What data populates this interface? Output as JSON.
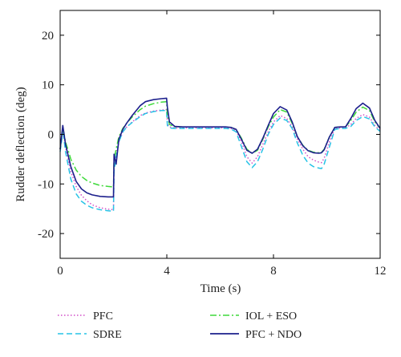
{
  "chart_data": {
    "type": "line",
    "xlabel": "Time (s)",
    "ylabel": "Rudder deflection (deg)",
    "xlim": [
      0,
      12
    ],
    "ylim": [
      -25,
      25
    ],
    "xticks": [
      0,
      4,
      8,
      12
    ],
    "yticks": [
      -20,
      -10,
      0,
      10,
      20
    ],
    "grid": false,
    "legend_position": "bottom",
    "series": [
      {
        "name": "PFC",
        "color": "#d24fc8",
        "style": "dotted",
        "x": [
          0,
          0.05,
          0.1,
          0.2,
          0.4,
          0.6,
          0.8,
          1.0,
          1.2,
          1.5,
          1.8,
          2.0,
          2.02,
          2.1,
          2.2,
          2.35,
          2.5,
          2.7,
          3.0,
          3.2,
          3.5,
          3.8,
          3.99,
          4.02,
          4.1,
          4.3,
          4.6,
          5.0,
          5.4,
          5.8,
          6.2,
          6.4,
          6.6,
          6.8,
          7.0,
          7.2,
          7.4,
          7.6,
          7.8,
          8.0,
          8.25,
          8.5,
          8.7,
          8.9,
          9.1,
          9.3,
          9.5,
          9.7,
          9.8,
          9.9,
          10.1,
          10.3,
          10.5,
          10.7,
          10.9,
          11.1,
          11.35,
          11.6,
          11.8,
          12.0
        ],
        "y": [
          -3,
          -1,
          1.2,
          -2.5,
          -7.5,
          -10.5,
          -12.3,
          -13.4,
          -14.2,
          -14.8,
          -15.1,
          -15.2,
          -6.5,
          -4,
          -1.5,
          0.5,
          1.5,
          2.5,
          3.8,
          4.3,
          4.7,
          4.9,
          5.0,
          2.2,
          1.5,
          1.3,
          1.3,
          1.3,
          1.3,
          1.3,
          1.3,
          1.2,
          0.8,
          -1.5,
          -4.5,
          -5.8,
          -4.5,
          -2,
          0.5,
          2.5,
          3.8,
          3.2,
          1.5,
          -1,
          -3,
          -4.5,
          -5.2,
          -5.6,
          -5.7,
          -4.8,
          -1.5,
          1.2,
          1.3,
          1.3,
          2.0,
          3.2,
          4.0,
          3.5,
          1.8,
          0.8
        ]
      },
      {
        "name": "SDRE",
        "color": "#27c3e6",
        "style": "dashed",
        "x": [
          0,
          0.05,
          0.1,
          0.2,
          0.4,
          0.6,
          0.8,
          1.0,
          1.2,
          1.5,
          1.8,
          2.0,
          2.02,
          2.1,
          2.2,
          2.35,
          2.5,
          2.7,
          3.0,
          3.2,
          3.5,
          3.8,
          3.99,
          4.02,
          4.1,
          4.3,
          4.6,
          5.0,
          5.4,
          5.8,
          6.2,
          6.4,
          6.6,
          6.8,
          7.0,
          7.2,
          7.4,
          7.6,
          7.8,
          8.0,
          8.25,
          8.5,
          8.7,
          8.9,
          9.1,
          9.3,
          9.5,
          9.7,
          9.8,
          9.9,
          10.1,
          10.3,
          10.5,
          10.7,
          10.9,
          11.1,
          11.35,
          11.6,
          11.8,
          12.0
        ],
        "y": [
          -3.5,
          -1.5,
          1.0,
          -3.5,
          -9,
          -12,
          -13.5,
          -14.3,
          -14.8,
          -15.2,
          -15.4,
          -15.5,
          -7.5,
          -4.5,
          -1.5,
          0.5,
          1.5,
          2.4,
          3.6,
          4.2,
          4.6,
          4.8,
          4.8,
          1.8,
          1.3,
          1.2,
          1.2,
          1.2,
          1.2,
          1.2,
          1.2,
          1.1,
          0.5,
          -2.5,
          -5.5,
          -6.7,
          -5.5,
          -3,
          0,
          2.0,
          3.3,
          2.8,
          1.2,
          -1.8,
          -4.2,
          -5.8,
          -6.5,
          -6.8,
          -6.9,
          -6,
          -2.5,
          1.0,
          1.2,
          1.2,
          1.6,
          2.8,
          3.6,
          3.1,
          1.5,
          0.6
        ]
      },
      {
        "name": "IOL + ESO",
        "color": "#3fd93b",
        "style": "dashdot",
        "x": [
          0,
          0.05,
          0.1,
          0.2,
          0.4,
          0.6,
          0.8,
          1.0,
          1.2,
          1.5,
          1.8,
          2.0,
          2.02,
          2.1,
          2.2,
          2.35,
          2.5,
          2.7,
          3.0,
          3.2,
          3.5,
          3.8,
          3.99,
          4.02,
          4.1,
          4.3,
          4.6,
          5.0,
          5.4,
          5.8,
          6.2,
          6.4,
          6.6,
          6.8,
          7.0,
          7.2,
          7.4,
          7.6,
          7.8,
          8.0,
          8.25,
          8.5,
          8.7,
          8.9,
          9.1,
          9.3,
          9.5,
          9.7,
          9.8,
          9.9,
          10.1,
          10.3,
          10.5,
          10.7,
          10.9,
          11.1,
          11.35,
          11.6,
          11.8,
          12.0
        ],
        "y": [
          -3,
          -1,
          1.5,
          -1.5,
          -5,
          -7.2,
          -8.5,
          -9.3,
          -9.8,
          -10.3,
          -10.5,
          -10.6,
          -5,
          -3,
          -0.5,
          1.2,
          2.3,
          3.5,
          5.0,
          5.7,
          6.2,
          6.5,
          6.6,
          4.0,
          2.0,
          1.5,
          1.5,
          1.5,
          1.5,
          1.5,
          1.5,
          1.4,
          1.0,
          -0.8,
          -3,
          -3.8,
          -3.2,
          -1,
          1.5,
          3.5,
          5.0,
          4.5,
          2.2,
          -0.5,
          -2.2,
          -3.2,
          -3.6,
          -3.7,
          -3.6,
          -3,
          -0.5,
          1.4,
          1.5,
          1.5,
          2.8,
          4.5,
          5.5,
          4.8,
          2.5,
          1.2
        ]
      },
      {
        "name": "PFC + NDO",
        "color": "#1c1f8c",
        "style": "solid",
        "x": [
          0,
          0.05,
          0.1,
          0.2,
          0.4,
          0.6,
          0.8,
          1.0,
          1.2,
          1.5,
          1.8,
          2.0,
          2.02,
          2.1,
          2.2,
          2.35,
          2.5,
          2.7,
          3.0,
          3.2,
          3.5,
          3.8,
          3.99,
          4.02,
          4.1,
          4.3,
          4.6,
          5.0,
          5.4,
          5.8,
          6.2,
          6.4,
          6.6,
          6.8,
          7.0,
          7.2,
          7.4,
          7.6,
          7.8,
          8.0,
          8.25,
          8.5,
          8.7,
          8.9,
          9.1,
          9.3,
          9.5,
          9.7,
          9.8,
          9.9,
          10.1,
          10.3,
          10.5,
          10.7,
          10.9,
          11.1,
          11.35,
          11.6,
          11.8,
          12.0
        ],
        "y": [
          -3,
          -0.5,
          1.8,
          -2,
          -6.5,
          -9.5,
          -11,
          -11.8,
          -12.2,
          -12.5,
          -12.6,
          -12.6,
          -4,
          -6,
          -1,
          1.0,
          2.3,
          3.8,
          5.8,
          6.6,
          7.0,
          7.2,
          7.3,
          5.5,
          2.5,
          1.6,
          1.5,
          1.5,
          1.5,
          1.5,
          1.5,
          1.4,
          1.0,
          -1,
          -3.2,
          -3.8,
          -3.0,
          -0.8,
          1.8,
          4.2,
          5.6,
          4.9,
          2.5,
          -0.5,
          -2.3,
          -3.3,
          -3.7,
          -3.8,
          -3.7,
          -3.1,
          -0.5,
          1.4,
          1.5,
          1.5,
          3.2,
          5.2,
          6.3,
          5.3,
          2.8,
          1.2
        ]
      }
    ]
  }
}
